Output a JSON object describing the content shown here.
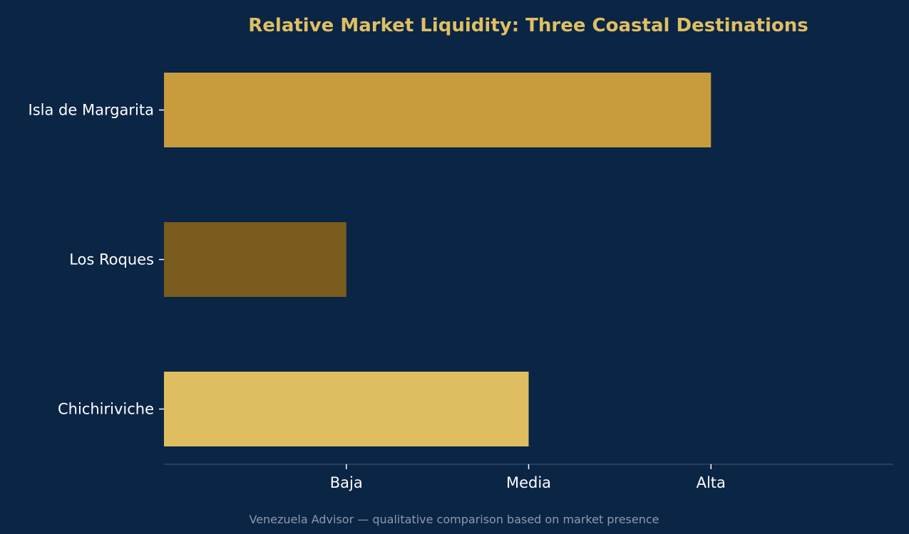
{
  "chart_data": {
    "type": "bar",
    "orientation": "horizontal",
    "title": "Relative Market Liquidity: Three Coastal Destinations",
    "categories": [
      "Isla de Margarita",
      "Los Roques",
      "Chichiriviche"
    ],
    "values": [
      3,
      1,
      2
    ],
    "bar_colors": [
      "#c89b3c",
      "#7a5c1e",
      "#dfbe62"
    ],
    "x_ticks": [
      {
        "value": 1,
        "label": "Baja"
      },
      {
        "value": 2,
        "label": "Media"
      },
      {
        "value": 3,
        "label": "Alta"
      }
    ],
    "xlim": [
      0,
      4
    ],
    "grid": false,
    "xlabel": "",
    "ylabel": ""
  },
  "footer": {
    "note": "Venezuela Advisor — qualitative comparison based on market presence"
  },
  "colors": {
    "background": "#0b2545",
    "title": "#e0bf62",
    "text": "#ffffff",
    "axis": "#33496a",
    "note": "#8d9aaf"
  }
}
